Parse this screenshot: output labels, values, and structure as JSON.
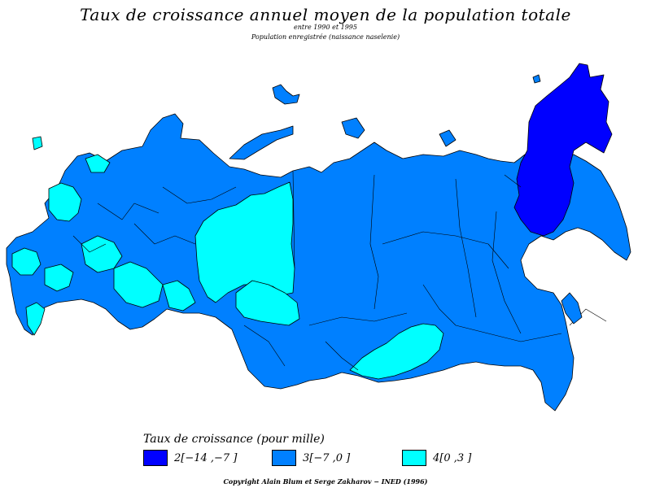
{
  "header": {
    "title": "Taux de croissance annuel moyen de la population totale",
    "period": "entre 1990 et 1995",
    "note": "Population enregistrée (naissance naselenie)"
  },
  "legend": {
    "title": "Taux de croissance (pour mille)",
    "items": [
      {
        "label": "2[−14 ,−7 ]",
        "color": "#0000ff"
      },
      {
        "label": "3[−7 ,0 ]",
        "color": "#0080ff"
      },
      {
        "label": "4[0 ,3 ]",
        "color": "#00ffff"
      }
    ]
  },
  "footer": {
    "copyright": "Copyright Alain Blum et Serge Zakharov − INED (1996)"
  }
}
